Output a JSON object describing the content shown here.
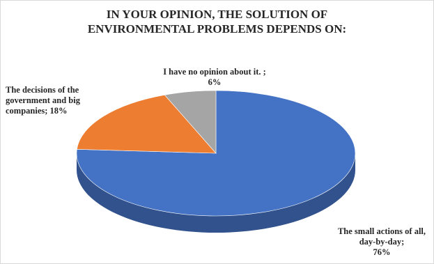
{
  "chart_data": {
    "type": "pie",
    "title_lines": [
      "IN YOUR OPINION, THE SOLUTION OF",
      "ENVIRONMENTAL PROBLEMS DEPENDS ON:"
    ],
    "style": "3d",
    "slices": [
      {
        "label": "The small actions of all, day-by-day;",
        "value": 76,
        "value_text": "76%",
        "color": "#4472C4"
      },
      {
        "label": "The decisions of the government and big companies;",
        "value": 18,
        "value_text": "18%",
        "color": "#ED7D31"
      },
      {
        "label": "I have no opinion about it. ;",
        "value": 6,
        "value_text": "6%",
        "color": "#A5A5A5"
      }
    ],
    "label_lines": {
      "blue": [
        "The small actions of all,",
        "day-by-day;",
        "76%"
      ],
      "orange": [
        "The decisions of the",
        "government and big",
        "companies; 18%"
      ],
      "gray": [
        "I have no opinion about it. ;",
        "6%"
      ]
    }
  }
}
